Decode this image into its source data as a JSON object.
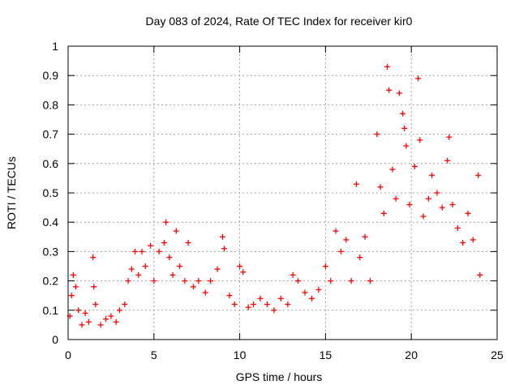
{
  "chart_data": {
    "type": "scatter",
    "title": "Day 083 of 2024, Rate Of TEC Index for receiver kir0",
    "xlabel": "GPS time / hours",
    "ylabel": "ROTI / TECUs",
    "xlim": [
      0,
      25
    ],
    "ylim": [
      0,
      1
    ],
    "xticks": [
      "0",
      "5",
      "10",
      "15",
      "20",
      "25"
    ],
    "yticks": [
      "0",
      "0.1",
      "0.2",
      "0.3",
      "0.4",
      "0.5",
      "0.6",
      "0.7",
      "0.8",
      "0.9",
      "1"
    ],
    "grid": true,
    "marker": "plus",
    "series_color": "#ff0000",
    "points": [
      [
        0.1,
        0.08
      ],
      [
        0.2,
        0.15
      ],
      [
        0.3,
        0.22
      ],
      [
        0.45,
        0.18
      ],
      [
        0.6,
        0.1
      ],
      [
        0.8,
        0.05
      ],
      [
        1.0,
        0.09
      ],
      [
        1.2,
        0.06
      ],
      [
        1.45,
        0.28
      ],
      [
        1.5,
        0.18
      ],
      [
        1.6,
        0.12
      ],
      [
        1.9,
        0.05
      ],
      [
        2.2,
        0.07
      ],
      [
        2.5,
        0.08
      ],
      [
        2.8,
        0.06
      ],
      [
        3.0,
        0.1
      ],
      [
        3.3,
        0.12
      ],
      [
        3.5,
        0.2
      ],
      [
        3.7,
        0.24
      ],
      [
        3.9,
        0.3
      ],
      [
        4.1,
        0.22
      ],
      [
        4.3,
        0.3
      ],
      [
        4.5,
        0.25
      ],
      [
        4.8,
        0.32
      ],
      [
        5.0,
        0.2
      ],
      [
        5.3,
        0.3
      ],
      [
        5.6,
        0.33
      ],
      [
        5.7,
        0.4
      ],
      [
        5.9,
        0.28
      ],
      [
        6.1,
        0.22
      ],
      [
        6.3,
        0.37
      ],
      [
        6.5,
        0.25
      ],
      [
        6.8,
        0.2
      ],
      [
        7.0,
        0.33
      ],
      [
        7.3,
        0.18
      ],
      [
        7.6,
        0.2
      ],
      [
        8.0,
        0.16
      ],
      [
        8.3,
        0.2
      ],
      [
        8.7,
        0.24
      ],
      [
        9.0,
        0.35
      ],
      [
        9.1,
        0.31
      ],
      [
        9.4,
        0.15
      ],
      [
        9.7,
        0.12
      ],
      [
        10.0,
        0.25
      ],
      [
        10.2,
        0.23
      ],
      [
        10.5,
        0.11
      ],
      [
        10.8,
        0.12
      ],
      [
        11.2,
        0.14
      ],
      [
        11.6,
        0.12
      ],
      [
        12.0,
        0.1
      ],
      [
        12.4,
        0.14
      ],
      [
        12.8,
        0.12
      ],
      [
        13.1,
        0.22
      ],
      [
        13.4,
        0.2
      ],
      [
        13.8,
        0.16
      ],
      [
        14.2,
        0.14
      ],
      [
        14.6,
        0.17
      ],
      [
        15.0,
        0.25
      ],
      [
        15.3,
        0.2
      ],
      [
        15.6,
        0.37
      ],
      [
        15.9,
        0.3
      ],
      [
        16.2,
        0.34
      ],
      [
        16.5,
        0.2
      ],
      [
        16.8,
        0.53
      ],
      [
        17.0,
        0.28
      ],
      [
        17.3,
        0.35
      ],
      [
        17.6,
        0.2
      ],
      [
        18.0,
        0.7
      ],
      [
        18.2,
        0.52
      ],
      [
        18.4,
        0.43
      ],
      [
        18.6,
        0.93
      ],
      [
        18.7,
        0.85
      ],
      [
        18.9,
        0.58
      ],
      [
        19.1,
        0.48
      ],
      [
        19.3,
        0.84
      ],
      [
        19.5,
        0.77
      ],
      [
        19.6,
        0.72
      ],
      [
        19.7,
        0.66
      ],
      [
        19.9,
        0.46
      ],
      [
        20.2,
        0.59
      ],
      [
        20.4,
        0.89
      ],
      [
        20.5,
        0.68
      ],
      [
        20.7,
        0.42
      ],
      [
        21.0,
        0.48
      ],
      [
        21.2,
        0.56
      ],
      [
        21.5,
        0.5
      ],
      [
        21.8,
        0.45
      ],
      [
        22.1,
        0.61
      ],
      [
        22.2,
        0.69
      ],
      [
        22.4,
        0.46
      ],
      [
        22.7,
        0.38
      ],
      [
        23.0,
        0.33
      ],
      [
        23.3,
        0.43
      ],
      [
        23.6,
        0.34
      ],
      [
        23.9,
        0.56
      ],
      [
        24.0,
        0.22
      ]
    ]
  }
}
